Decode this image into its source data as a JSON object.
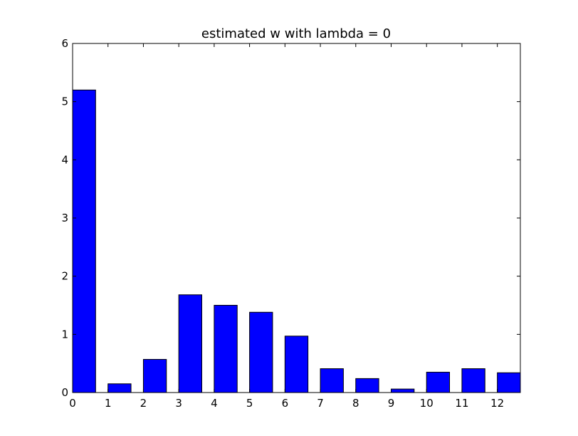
{
  "chart_data": {
    "type": "bar",
    "title": "estimated w with lambda = 0",
    "xlabel": "",
    "ylabel": "",
    "x": [
      0,
      1,
      2,
      3,
      4,
      5,
      6,
      7,
      8,
      9,
      10,
      11,
      12
    ],
    "values": [
      5.2,
      0.15,
      0.57,
      1.68,
      1.5,
      1.38,
      0.97,
      0.41,
      0.24,
      0.06,
      0.35,
      0.41,
      0.34
    ],
    "bar_width": 0.65,
    "xlim": [
      0,
      12.65
    ],
    "ylim": [
      0,
      6
    ],
    "xticks": [
      "0",
      "1",
      "2",
      "3",
      "4",
      "5",
      "6",
      "7",
      "8",
      "9",
      "10",
      "11",
      "12"
    ],
    "yticks": [
      "0",
      "1",
      "2",
      "3",
      "4",
      "5",
      "6"
    ],
    "bar_color": "#0000ff",
    "grid": false,
    "legend": false
  }
}
